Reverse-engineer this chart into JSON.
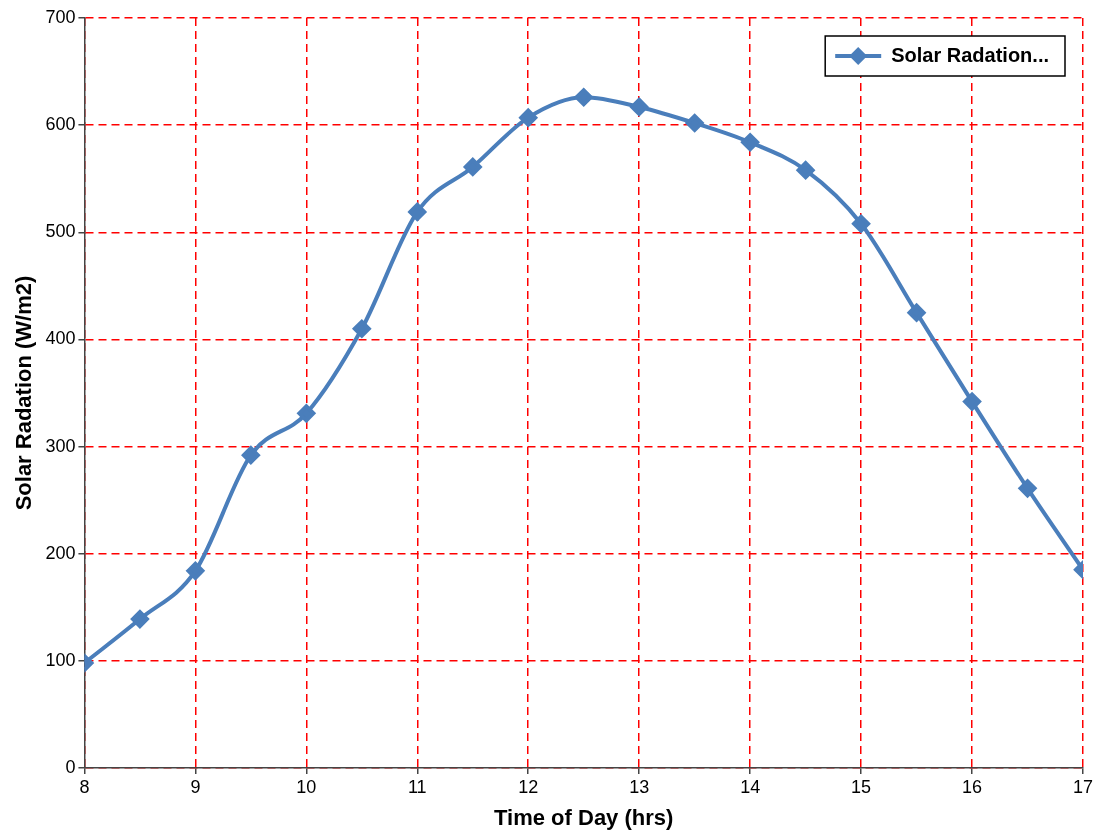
{
  "chart_data": {
    "type": "line",
    "xlabel": "Time of Day (hrs)",
    "ylabel": "Solar Radation (W/m2)",
    "x": [
      8,
      8.5,
      9,
      9.5,
      10,
      10.5,
      11,
      11.5,
      12,
      12.5,
      13,
      13.5,
      14,
      14.5,
      15,
      15.5,
      16,
      16.5,
      17
    ],
    "series": [
      {
        "name": "Solar Radation...",
        "color": "#4a7ebb",
        "values": [
          98,
          139,
          184,
          292,
          331,
          410,
          519,
          561,
          607,
          626,
          617,
          602,
          584,
          558,
          508,
          425,
          342,
          261,
          185
        ]
      }
    ],
    "xlim": [
      8,
      17
    ],
    "xticks": [
      8,
      9,
      10,
      11,
      12,
      13,
      14,
      15,
      16,
      17
    ],
    "ylim": [
      0,
      700
    ],
    "yticks": [
      0,
      100,
      200,
      300,
      400,
      500,
      600,
      700
    ],
    "grid": true,
    "legend": "top right",
    "marker": "diamond",
    "line_style": "solid"
  }
}
